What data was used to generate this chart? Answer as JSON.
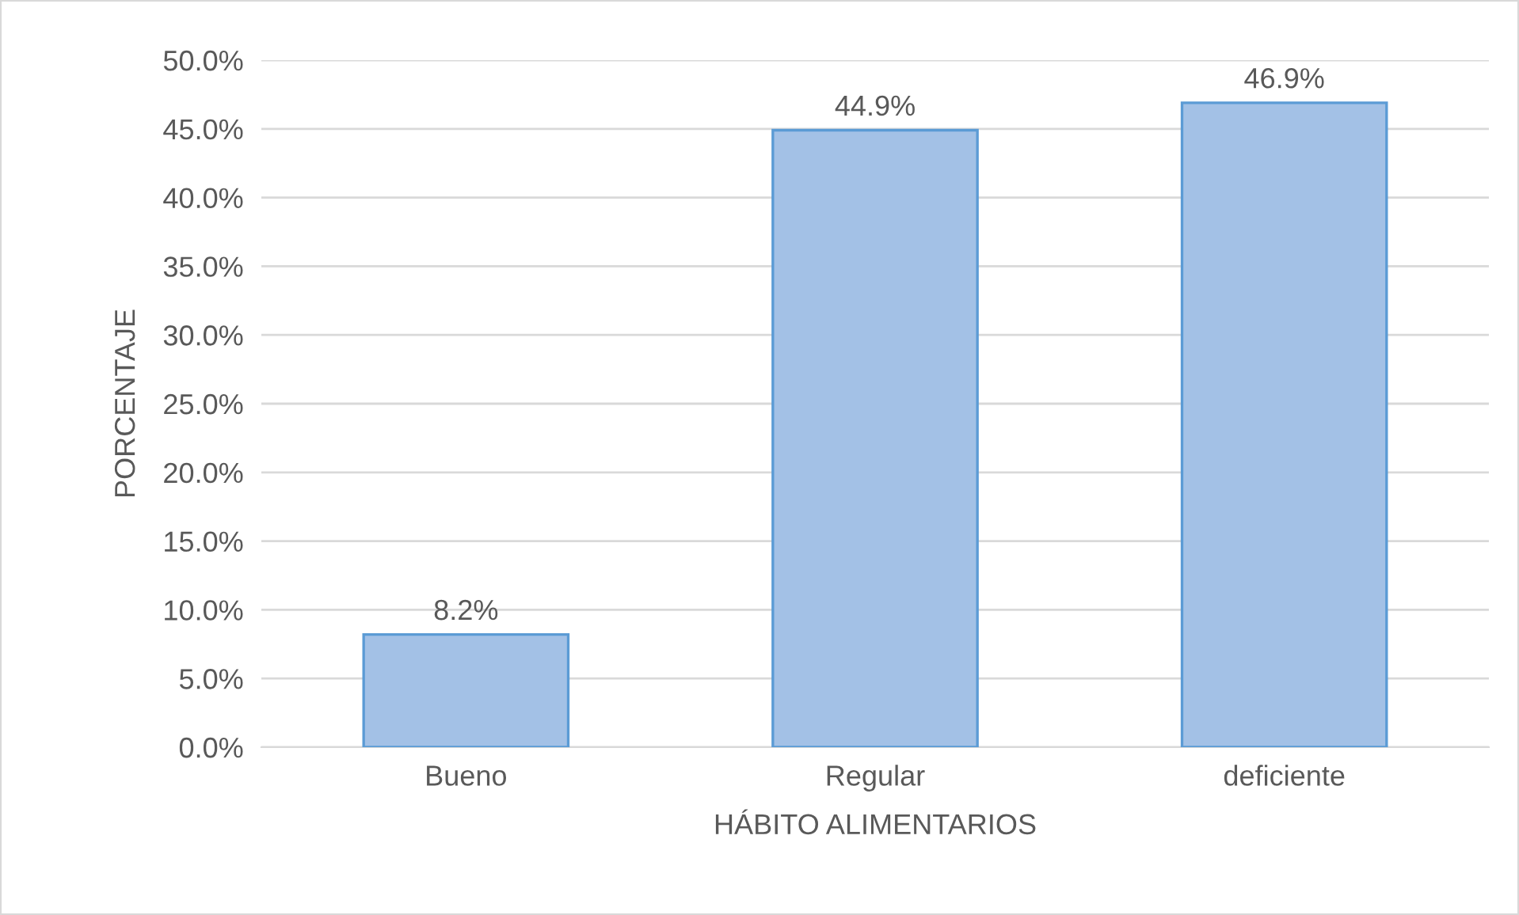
{
  "chart_data": {
    "type": "bar",
    "xlabel": "HÁBITO ALIMENTARIOS",
    "ylabel": "PORCENTAJE",
    "categories": [
      "Bueno",
      "Regular",
      "deficiente"
    ],
    "values": [
      8.2,
      44.9,
      46.9
    ],
    "value_labels": [
      "8.2%",
      "44.9%",
      "46.9%"
    ],
    "color": "#a3c1e6",
    "ylim": [
      0,
      50
    ],
    "yticks": [
      {
        "value": 0,
        "label": "0.0%"
      },
      {
        "value": 5,
        "label": "5.0%"
      },
      {
        "value": 10,
        "label": "10.0%"
      },
      {
        "value": 15,
        "label": "15.0%"
      },
      {
        "value": 20,
        "label": "20.0%"
      },
      {
        "value": 25,
        "label": "25.0%"
      },
      {
        "value": 30,
        "label": "30.0%"
      },
      {
        "value": 35,
        "label": "35.0%"
      },
      {
        "value": 40,
        "label": "40.0%"
      },
      {
        "value": 45,
        "label": "45.0%"
      },
      {
        "value": 50,
        "label": "50.0%"
      }
    ],
    "grid": "y"
  }
}
